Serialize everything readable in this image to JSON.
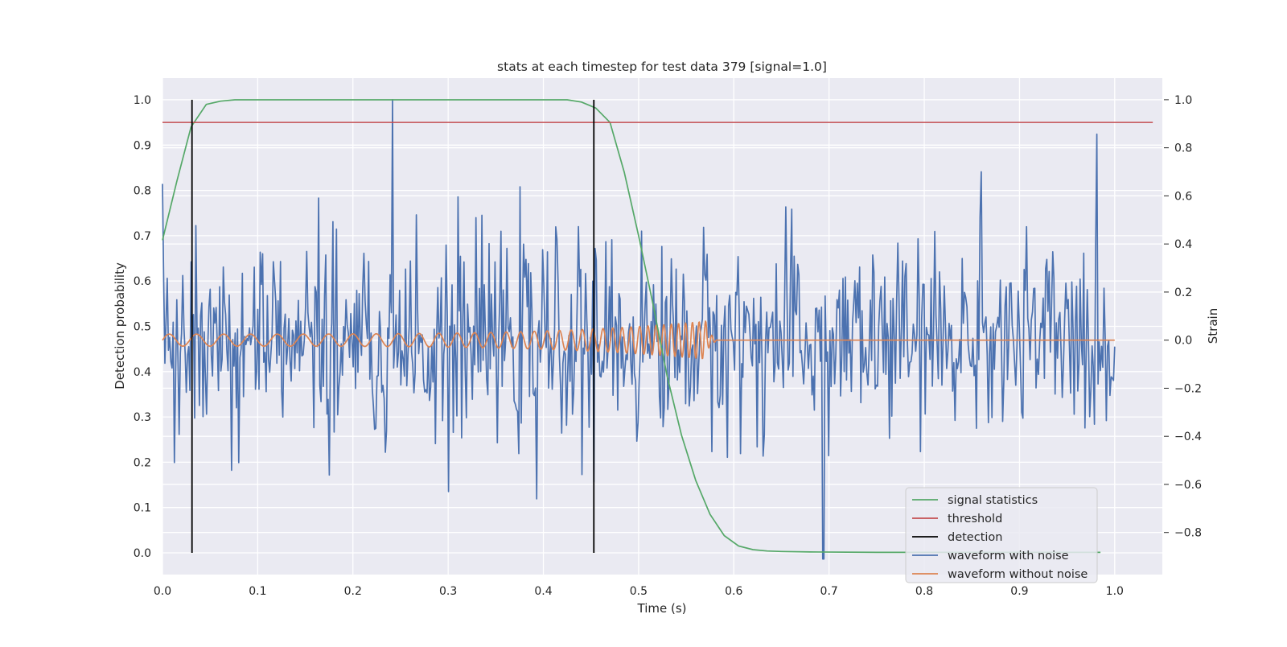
{
  "chart_data": {
    "type": "line",
    "title": "stats at each timestep for test data 379 [signal=1.0]",
    "xlabel": "Time (s)",
    "ylabel": "Detection probability",
    "y2label": "Strain",
    "xlim": [
      0.0,
      1.05
    ],
    "ylim": [
      -0.048,
      1.048
    ],
    "y2lim": [
      -0.975,
      1.09
    ],
    "grid": true,
    "background": "#eaeaf2",
    "x_ticks": [
      "0.0",
      "0.1",
      "0.2",
      "0.3",
      "0.4",
      "0.5",
      "0.6",
      "0.7",
      "0.8",
      "0.9",
      "1.0"
    ],
    "y_ticks": [
      "0.0",
      "0.1",
      "0.2",
      "0.3",
      "0.4",
      "0.5",
      "0.6",
      "0.7",
      "0.8",
      "0.9",
      "1.0"
    ],
    "y2_ticks": [
      "−0.8",
      "−0.6",
      "−0.4",
      "−0.2",
      "0.0",
      "0.2",
      "0.4",
      "0.6",
      "0.8",
      "1.0"
    ],
    "legend_position": "lower right",
    "series": [
      {
        "name": "signal statistics",
        "axis": "left",
        "color": "#55a868",
        "x": [
          0.0,
          0.015,
          0.03,
          0.046,
          0.061,
          0.076,
          0.1,
          0.2,
          0.3,
          0.4,
          0.425,
          0.44,
          0.455,
          0.47,
          0.485,
          0.5,
          0.515,
          0.53,
          0.545,
          0.56,
          0.575,
          0.59,
          0.605,
          0.62,
          0.635,
          0.65,
          0.68,
          0.75,
          0.85,
          0.95,
          0.985
        ],
        "values": [
          0.69,
          0.82,
          0.94,
          0.99,
          0.997,
          1.0,
          1.0,
          1.0,
          1.0,
          1.0,
          1.0,
          0.995,
          0.982,
          0.95,
          0.84,
          0.7,
          0.55,
          0.39,
          0.26,
          0.16,
          0.085,
          0.038,
          0.015,
          0.007,
          0.004,
          0.003,
          0.002,
          0.001,
          0.001,
          0.001,
          0.001
        ]
      },
      {
        "name": "threshold",
        "axis": "left",
        "color": "#c44e52",
        "x": [
          0.0,
          1.04
        ],
        "values": [
          0.95,
          0.95
        ]
      },
      {
        "name": "detection",
        "axis": "left",
        "color": "#000000",
        "x": [
          0.031,
          0.453
        ],
        "values": [
          [
            0.0,
            1.0
          ],
          [
            0.0,
            1.0
          ]
        ]
      },
      {
        "name": "waveform with noise",
        "axis": "right",
        "color": "#4c72b0",
        "x_range": [
          0.0,
          1.0
        ],
        "samples": 800,
        "std": 0.2,
        "peaks": [
          {
            "x": 0.242,
            "y": 1.0
          },
          {
            "x": 0.694,
            "y": -0.91
          },
          {
            "x": 0.453,
            "y": -0.59
          },
          {
            "x": 0.86,
            "y": 0.7
          },
          {
            "x": 0.0,
            "y": 0.65
          },
          {
            "x": 0.3,
            "y": -0.63
          },
          {
            "x": 0.393,
            "y": -0.66
          }
        ]
      },
      {
        "name": "waveform without noise",
        "axis": "right",
        "color": "#dd8452",
        "x_range": [
          0.0,
          1.0
        ],
        "chirp_end": 0.572,
        "amplitude_start": 0.025,
        "amplitude_end": 0.08,
        "frequency_start": 35,
        "frequency_end": 150
      }
    ]
  }
}
